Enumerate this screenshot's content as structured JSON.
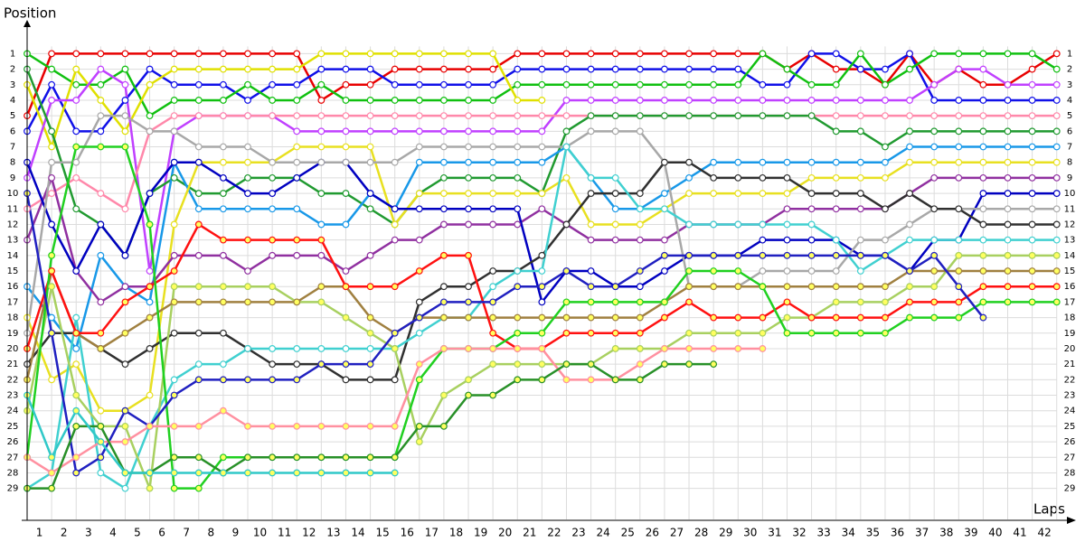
{
  "chart_data": {
    "type": "line",
    "y_label": "Position",
    "x_label": "Laps",
    "x": [
      0,
      1,
      2,
      3,
      4,
      5,
      6,
      7,
      8,
      9,
      10,
      11,
      12,
      13,
      14,
      15,
      16,
      17,
      18,
      19,
      20,
      21,
      22,
      23,
      24,
      25,
      26,
      27,
      28,
      29,
      30,
      31,
      32,
      33,
      34,
      35,
      36,
      37,
      38,
      39,
      40,
      41,
      42
    ],
    "xlim": [
      0,
      42.6
    ],
    "xticks": [
      1,
      2,
      3,
      4,
      5,
      6,
      7,
      8,
      9,
      10,
      11,
      12,
      13,
      14,
      15,
      16,
      17,
      18,
      19,
      20,
      21,
      22,
      23,
      24,
      25,
      26,
      27,
      28,
      29,
      30,
      31,
      32,
      33,
      34,
      35,
      36,
      37,
      38,
      39,
      40,
      41,
      42
    ],
    "ylim": [
      31,
      -1
    ],
    "yticks": [
      1,
      2,
      3,
      4,
      5,
      6,
      7,
      8,
      9,
      10,
      11,
      12,
      13,
      14,
      15,
      16,
      17,
      18,
      19,
      20,
      21,
      22,
      23,
      24,
      25,
      26,
      27,
      28,
      29
    ],
    "grid": true,
    "series": [
      {
        "color": "#e80000",
        "marker_fill": "#ffffff",
        "values": [
          5,
          1,
          1,
          1,
          1,
          1,
          1,
          1,
          1,
          1,
          1,
          1,
          4,
          3,
          3,
          2,
          2,
          2,
          2,
          2,
          1,
          1,
          1,
          1,
          1,
          1,
          1,
          1,
          1,
          1,
          1,
          2,
          1,
          2,
          2,
          3,
          1,
          3,
          2,
          3,
          3,
          2,
          1
        ]
      },
      {
        "color": "#1010e8",
        "marker_fill": "#ffffff",
        "values": [
          6,
          3,
          6,
          6,
          4,
          2,
          3,
          3,
          3,
          4,
          3,
          3,
          2,
          2,
          2,
          3,
          3,
          3,
          3,
          3,
          2,
          2,
          2,
          2,
          2,
          2,
          2,
          2,
          2,
          2,
          3,
          3,
          1,
          1,
          2,
          2,
          1,
          4,
          4,
          4,
          4,
          4,
          4
        ]
      },
      {
        "color": "#10c010",
        "marker_fill": "#ffffff",
        "values": [
          1,
          2,
          3,
          3,
          2,
          5,
          4,
          4,
          4,
          3,
          4,
          4,
          3,
          4,
          4,
          4,
          4,
          4,
          4,
          4,
          3,
          3,
          3,
          3,
          3,
          3,
          3,
          3,
          3,
          3,
          1,
          2,
          3,
          3,
          1,
          3,
          2,
          1,
          1,
          1,
          1,
          1,
          2
        ]
      },
      {
        "color": "#e0e000",
        "marker_fill": "#ffffff",
        "values": [
          3,
          7,
          2,
          4,
          6,
          3,
          2,
          2,
          2,
          2,
          2,
          2,
          1,
          1,
          1,
          1,
          1,
          1,
          1,
          1,
          4,
          4,
          null,
          null,
          null,
          null,
          null,
          null,
          null,
          null,
          null,
          null,
          null,
          null,
          null,
          null,
          null,
          null,
          null,
          null,
          null,
          null,
          null
        ]
      },
      {
        "color": "#c040ff",
        "marker_fill": "#ffffff",
        "values": [
          9,
          4,
          4,
          2,
          3,
          15,
          6,
          5,
          5,
          5,
          5,
          6,
          6,
          6,
          6,
          6,
          6,
          6,
          6,
          6,
          6,
          6,
          4,
          4,
          4,
          4,
          4,
          4,
          4,
          4,
          4,
          4,
          4,
          4,
          4,
          4,
          4,
          3,
          2,
          2,
          3,
          3,
          3
        ]
      },
      {
        "color": "#ff88aa",
        "marker_fill": "#ffffff",
        "values": [
          11,
          10,
          9,
          10,
          11,
          6,
          5,
          5,
          5,
          5,
          5,
          5,
          5,
          5,
          5,
          5,
          5,
          5,
          5,
          5,
          5,
          5,
          5,
          5,
          5,
          5,
          5,
          5,
          5,
          5,
          5,
          5,
          5,
          5,
          5,
          5,
          5,
          5,
          5,
          5,
          5,
          5,
          5
        ]
      },
      {
        "color": "#209a30",
        "marker_fill": "#ffffff",
        "values": [
          2,
          6,
          11,
          12,
          14,
          10,
          9,
          10,
          10,
          9,
          9,
          9,
          10,
          10,
          11,
          12,
          10,
          9,
          9,
          9,
          9,
          10,
          6,
          5,
          5,
          5,
          5,
          5,
          5,
          5,
          5,
          5,
          5,
          6,
          6,
          7,
          6,
          6,
          6,
          6,
          6,
          6,
          6
        ]
      },
      {
        "color": "#1898e8",
        "marker_fill": "#ffffff",
        "values": [
          16,
          18,
          20,
          14,
          16,
          17,
          8,
          11,
          11,
          11,
          11,
          11,
          12,
          12,
          10,
          11,
          8,
          8,
          8,
          8,
          8,
          8,
          7,
          9,
          11,
          11,
          10,
          9,
          8,
          8,
          8,
          8,
          8,
          8,
          8,
          8,
          7,
          7,
          7,
          7,
          7,
          7,
          7
        ]
      },
      {
        "color": "#e8e020",
        "marker_fill": "#ffffff",
        "values": [
          18,
          22,
          21,
          24,
          24,
          23,
          12,
          8,
          8,
          8,
          8,
          7,
          7,
          7,
          7,
          12,
          10,
          10,
          10,
          10,
          10,
          10,
          9,
          12,
          12,
          12,
          11,
          10,
          10,
          10,
          10,
          10,
          9,
          9,
          9,
          9,
          8,
          8,
          8,
          8,
          8,
          8,
          8
        ]
      },
      {
        "color": "#9030a0",
        "marker_fill": "#ffffff",
        "values": [
          13,
          9,
          15,
          17,
          16,
          16,
          14,
          14,
          14,
          15,
          14,
          14,
          14,
          15,
          14,
          13,
          13,
          12,
          12,
          12,
          12,
          11,
          12,
          13,
          13,
          13,
          13,
          12,
          12,
          12,
          12,
          11,
          11,
          11,
          11,
          11,
          10,
          9,
          9,
          9,
          9,
          9,
          9
        ]
      },
      {
        "color": "#0000c0",
        "marker_fill": "#ffffff",
        "values": [
          8,
          12,
          15,
          12,
          14,
          10,
          8,
          8,
          9,
          10,
          10,
          9,
          8,
          8,
          10,
          11,
          11,
          11,
          11,
          11,
          11,
          17,
          15,
          15,
          16,
          16,
          15,
          14,
          14,
          14,
          13,
          13,
          13,
          13,
          14,
          14,
          15,
          13,
          13,
          10,
          10,
          10,
          10
        ]
      },
      {
        "color": "#a8a8a8",
        "marker_fill": "#ffffff",
        "values": [
          19,
          8,
          8,
          5,
          5,
          6,
          6,
          7,
          7,
          7,
          8,
          8,
          8,
          8,
          8,
          8,
          7,
          7,
          7,
          7,
          7,
          7,
          7,
          6,
          6,
          6,
          8,
          16,
          16,
          16,
          15,
          15,
          15,
          15,
          13,
          13,
          12,
          11,
          11,
          11,
          11,
          11,
          11
        ]
      },
      {
        "color": "#303030",
        "marker_fill": "#ffffff",
        "values": [
          21,
          19,
          19,
          20,
          21,
          20,
          19,
          19,
          19,
          20,
          21,
          21,
          21,
          22,
          22,
          22,
          17,
          16,
          16,
          15,
          15,
          14,
          12,
          10,
          10,
          10,
          8,
          8,
          9,
          9,
          9,
          9,
          10,
          10,
          10,
          11,
          10,
          11,
          11,
          12,
          12,
          12,
          12
        ]
      },
      {
        "color": "#40d0d0",
        "marker_fill": "#ffffff",
        "values": [
          29,
          28,
          18,
          28,
          29,
          25,
          22,
          21,
          21,
          20,
          20,
          20,
          20,
          20,
          20,
          20,
          19,
          18,
          18,
          16,
          15,
          15,
          7,
          9,
          9,
          11,
          11,
          12,
          12,
          12,
          12,
          12,
          12,
          13,
          15,
          14,
          13,
          13,
          13,
          13,
          13,
          13,
          13
        ]
      },
      {
        "color": "#a8d060",
        "marker_fill": "#ffff60",
        "values": [
          24,
          16,
          23,
          25,
          25,
          29,
          16,
          16,
          16,
          16,
          16,
          17,
          17,
          18,
          19,
          20,
          26,
          23,
          22,
          21,
          21,
          21,
          21,
          21,
          20,
          20,
          20,
          19,
          19,
          19,
          19,
          18,
          18,
          17,
          17,
          17,
          16,
          16,
          14,
          14,
          14,
          14,
          14
        ]
      },
      {
        "color": "#a08040",
        "marker_fill": "#ffff60",
        "values": [
          22,
          15,
          19,
          20,
          19,
          18,
          17,
          17,
          17,
          17,
          17,
          17,
          16,
          16,
          18,
          19,
          18,
          18,
          18,
          18,
          18,
          18,
          18,
          18,
          18,
          18,
          17,
          16,
          16,
          16,
          16,
          16,
          16,
          16,
          16,
          16,
          15,
          15,
          15,
          15,
          15,
          15,
          15
        ]
      },
      {
        "color": "#ff1010",
        "marker_fill": "#ffff60",
        "values": [
          20,
          15,
          19,
          19,
          17,
          16,
          15,
          12,
          13,
          13,
          13,
          13,
          13,
          16,
          16,
          16,
          15,
          14,
          14,
          19,
          20,
          20,
          19,
          19,
          19,
          19,
          18,
          17,
          18,
          18,
          18,
          17,
          18,
          18,
          18,
          18,
          17,
          17,
          17,
          16,
          16,
          16,
          16
        ]
      },
      {
        "color": "#20d020",
        "marker_fill": "#ffff60",
        "values": [
          27,
          14,
          7,
          7,
          7,
          12,
          29,
          29,
          27,
          27,
          27,
          27,
          27,
          27,
          27,
          27,
          22,
          20,
          20,
          20,
          19,
          19,
          17,
          17,
          17,
          17,
          17,
          15,
          15,
          15,
          16,
          19,
          19,
          19,
          19,
          19,
          18,
          18,
          18,
          17,
          17,
          17,
          17
        ]
      },
      {
        "color": "#2020c0",
        "marker_fill": "#ffff60",
        "values": [
          10,
          19,
          28,
          27,
          24,
          25,
          23,
          22,
          22,
          22,
          22,
          22,
          21,
          21,
          21,
          19,
          18,
          17,
          17,
          17,
          16,
          16,
          15,
          16,
          16,
          15,
          14,
          14,
          14,
          14,
          14,
          14,
          14,
          14,
          14,
          14,
          15,
          14,
          16,
          18,
          null,
          null,
          null
        ]
      },
      {
        "color": "#ff90a0",
        "marker_fill": "#ffff60",
        "values": [
          27,
          28,
          27,
          26,
          26,
          25,
          25,
          25,
          24,
          25,
          25,
          25,
          25,
          25,
          25,
          25,
          21,
          20,
          20,
          20,
          20,
          20,
          22,
          22,
          22,
          21,
          20,
          20,
          20,
          20,
          20,
          null,
          null,
          null,
          null,
          null,
          null,
          null,
          null,
          null,
          null,
          null,
          null
        ]
      },
      {
        "color": "#289028",
        "marker_fill": "#ffff60",
        "values": [
          29,
          29,
          25,
          25,
          28,
          28,
          27,
          27,
          28,
          27,
          27,
          27,
          27,
          27,
          27,
          27,
          25,
          25,
          23,
          23,
          22,
          22,
          21,
          21,
          22,
          22,
          21,
          21,
          21,
          null,
          null,
          null,
          null,
          null,
          null,
          null,
          null,
          null,
          null,
          null,
          null,
          null,
          null
        ]
      },
      {
        "color": "#30c8c8",
        "marker_fill": "#ffff60",
        "values": [
          23,
          27,
          24,
          26,
          28,
          28,
          28,
          28,
          28,
          28,
          28,
          28,
          28,
          28,
          28,
          28,
          null,
          null,
          null,
          null,
          null,
          null,
          null,
          null,
          null,
          null,
          null,
          null,
          null,
          null,
          null,
          null,
          null,
          null,
          null,
          null,
          null,
          null,
          null,
          null,
          null,
          null,
          null
        ]
      }
    ]
  }
}
